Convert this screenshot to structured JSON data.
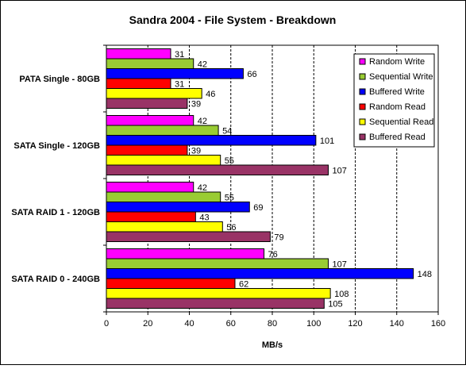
{
  "chart_data": {
    "type": "bar",
    "orientation": "horizontal",
    "title": "Sandra 2004 - File System - Breakdown",
    "xlabel": "MB/s",
    "ylabel": "",
    "xlim": [
      0,
      160
    ],
    "xticks": [
      0,
      20,
      40,
      60,
      80,
      100,
      120,
      140,
      160
    ],
    "grid": "vertical dashed",
    "legend_position": "top-right",
    "categories": [
      "PATA Single - 80GB",
      "SATA Single - 120GB",
      "SATA RAID 1 - 120GB",
      "SATA RAID 0 - 240GB"
    ],
    "series": [
      {
        "name": "Random Write",
        "color": "#ff00ff",
        "values": [
          31,
          42,
          42,
          76
        ]
      },
      {
        "name": "Sequential Write",
        "color": "#99cc33",
        "values": [
          42,
          54,
          55,
          107
        ]
      },
      {
        "name": "Buffered Write",
        "color": "#0000ff",
        "values": [
          66,
          101,
          69,
          148
        ]
      },
      {
        "name": "Random Read",
        "color": "#ff0000",
        "values": [
          31,
          39,
          43,
          62
        ]
      },
      {
        "name": "Sequential Read",
        "color": "#ffff00",
        "values": [
          46,
          55,
          56,
          108
        ]
      },
      {
        "name": "Buffered Read",
        "color": "#993366",
        "values": [
          39,
          107,
          79,
          105
        ]
      }
    ]
  }
}
